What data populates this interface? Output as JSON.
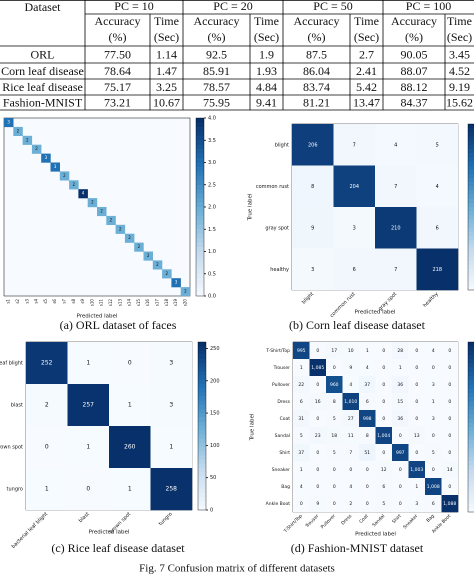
{
  "table": {
    "corner": "Dataset",
    "groups": [
      "PC = 10",
      "PC = 20",
      "PC = 50",
      "PC = 100"
    ],
    "accuracy": [
      "Accuracy",
      "(%)"
    ],
    "time": [
      "Time",
      "(Sec)"
    ],
    "rows": [
      [
        "ORL",
        "77.50",
        "1.14",
        "92.5",
        "1.9",
        "87.5",
        "2.7",
        "90.05",
        "3.45"
      ],
      [
        "Corn leaf disease",
        "78.64",
        "1.47",
        "85.91",
        "1.93",
        "86.04",
        "2.41",
        "88.07",
        "4.52"
      ],
      [
        "Rice leaf disease",
        "75.17",
        "3.25",
        "78.57",
        "4.84",
        "83.74",
        "5.42",
        "88.12",
        "9.19"
      ],
      [
        "Fashion-MNIST",
        "73.21",
        "10.67",
        "75.95",
        "9.41",
        "81.21",
        "13.47",
        "84.37",
        "15.62"
      ]
    ]
  },
  "figures": [
    {
      "caption": "(a) ORL dataset of faces",
      "x_axis_label": "Predicted label",
      "x_labels": [
        "s1",
        "s2",
        "s3",
        "s4",
        "s5",
        "s6",
        "s7",
        "s8",
        "s9",
        "s10",
        "s11",
        "s12",
        "s13",
        "s14",
        "s15",
        "s16",
        "s17",
        "s18",
        "s19",
        "s20"
      ],
      "diagonal": [
        "3",
        "2",
        "2",
        "2",
        "3",
        "3",
        "2",
        "2",
        "4",
        "2",
        "2",
        "2",
        "2",
        "2",
        "2",
        "2",
        "2",
        "2",
        "3",
        "2"
      ],
      "colorbar_ticks": [
        "0.0",
        "0.5",
        "1.0",
        "1.5",
        "2.0",
        "2.5",
        "3.0",
        "3.5",
        "4.0"
      ]
    },
    {
      "caption": "(b) Corn leaf disease dataset",
      "x_axis_label": "Predicted label",
      "y_axis_label": "True label",
      "x_labels": [
        "blight",
        "common rust",
        "gray spot",
        "healthy"
      ],
      "y_labels": [
        "blight",
        "common rust",
        "gray spot",
        "healthy"
      ],
      "cells": [
        [
          "206",
          "7",
          "4",
          "5"
        ],
        [
          "8",
          "204",
          "7",
          "4"
        ],
        [
          "9",
          "3",
          "210",
          "6"
        ],
        [
          "3",
          "6",
          "7",
          "218"
        ]
      ]
    },
    {
      "caption": "(c) Rice leaf disease dataset",
      "x_axis_label": "Predicted label",
      "x_labels": [
        "bacterial leaf blight",
        "blast",
        "brown spot",
        "tungro"
      ],
      "y_labels": [
        "bacterial leaf blight",
        "blast",
        "brown spot",
        "tungro"
      ],
      "cells": [
        [
          "252",
          "1",
          "0",
          "3"
        ],
        [
          "2",
          "257",
          "1",
          "3"
        ],
        [
          "0",
          "1",
          "260",
          "1"
        ],
        [
          "1",
          "0",
          "1",
          "258"
        ]
      ],
      "colorbar_ticks": [
        "0",
        "50",
        "100",
        "150",
        "200",
        "250"
      ]
    },
    {
      "caption": "(d) Fashion-MNIST dataset",
      "x_axis_label": "Predicted label",
      "y_axis_label": "True label",
      "x_labels": [
        "T-Shirt/Top",
        "Trouser",
        "Pullover",
        "Dress",
        "Coat",
        "Sandal",
        "Shirt",
        "Sneaker",
        "Bag",
        "Ankle Boot"
      ],
      "y_labels": [
        "T-Shirt/Top",
        "Trouser",
        "Pullover",
        "Dress",
        "Coat",
        "Sandal",
        "Shirt",
        "Sneaker",
        "Bag",
        "Ankle Boot"
      ],
      "cells": [
        [
          "995",
          "0",
          "17",
          "10",
          "1",
          "0",
          "28",
          "0",
          "4",
          "0"
        ],
        [
          "1",
          "1,085",
          "0",
          "9",
          "4",
          "0",
          "1",
          "0",
          "0",
          "0"
        ],
        [
          "22",
          "0",
          "960",
          "4",
          "37",
          "0",
          "36",
          "0",
          "3",
          "0"
        ],
        [
          "6",
          "16",
          "8",
          "1,010",
          "6",
          "0",
          "15",
          "0",
          "1",
          "0"
        ],
        [
          "31",
          "0",
          "5",
          "27",
          "998",
          "0",
          "36",
          "0",
          "3",
          "0"
        ],
        [
          "5",
          "23",
          "18",
          "11",
          "8",
          "1,004",
          "0",
          "13",
          "0",
          "0"
        ],
        [
          "37",
          "0",
          "5",
          "7",
          "51",
          "0",
          "997",
          "0",
          "5",
          "0"
        ],
        [
          "1",
          "0",
          "0",
          "0",
          "0",
          "12",
          "0",
          "1,003",
          "0",
          "14"
        ],
        [
          "4",
          "0",
          "0",
          "4",
          "0",
          "6",
          "0",
          "1",
          "1,008",
          "0"
        ],
        [
          "0",
          "9",
          "0",
          "2",
          "0",
          "5",
          "0",
          "3",
          "6",
          "1,088"
        ]
      ]
    }
  ],
  "figure_caption": "Fig. 7 Confusion matrix of different datasets"
}
